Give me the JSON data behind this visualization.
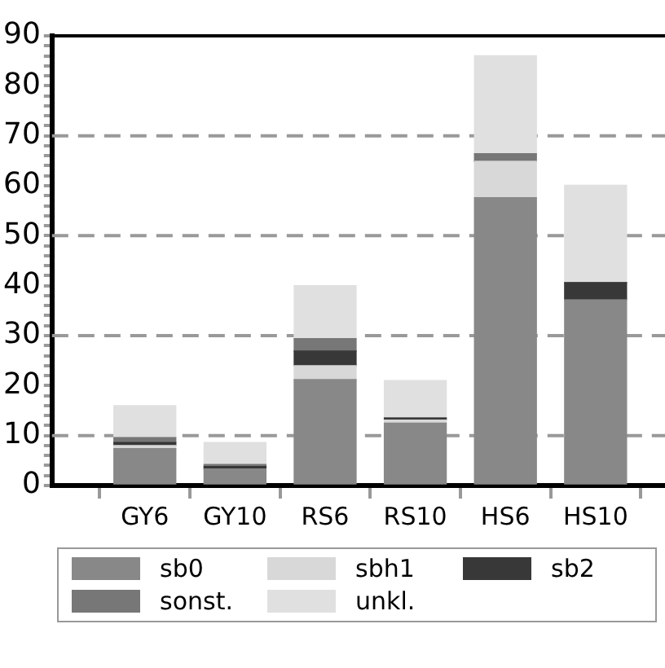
{
  "chart_data": {
    "type": "bar",
    "stacked": true,
    "categories": [
      "GY6",
      "GY10",
      "RS6",
      "RS10",
      "HS6",
      "HS10"
    ],
    "series": [
      {
        "name": "sb0",
        "color": "#888888",
        "values": [
          7.4,
          3.3,
          21.2,
          12.5,
          57.6,
          37.1
        ]
      },
      {
        "name": "sbh1",
        "color": "#d8d8d8",
        "values": [
          0.6,
          0,
          2.8,
          0.6,
          7.3,
          0
        ]
      },
      {
        "name": "sb2",
        "color": "#383838",
        "values": [
          0.6,
          0.5,
          2.9,
          0.4,
          0,
          3.5
        ]
      },
      {
        "name": "sonst.",
        "color": "#777777",
        "values": [
          1.0,
          0.4,
          2.5,
          0,
          1.5,
          0
        ]
      },
      {
        "name": "unkl.",
        "color": "#e0e0e0",
        "values": [
          6.4,
          4.4,
          10.6,
          7.5,
          19.6,
          19.5
        ]
      }
    ],
    "ylim": [
      0,
      90
    ],
    "yticks": [
      0,
      {
        "value": 2,
        "label": null
      },
      {
        "value": 4,
        "label": null
      },
      {
        "value": 6,
        "label": null
      },
      {
        "value": 8,
        "label": null
      },
      10,
      {
        "value": 12,
        "label": null
      },
      {
        "value": 14,
        "label": null
      },
      {
        "value": 16,
        "label": null
      },
      {
        "value": 18,
        "label": null
      },
      20,
      {
        "value": 22,
        "label": null
      },
      {
        "value": 24,
        "label": null
      },
      {
        "value": 26,
        "label": null
      },
      {
        "value": 28,
        "label": null
      },
      30,
      {
        "value": 32,
        "label": null
      },
      {
        "value": 34,
        "label": null
      },
      {
        "value": 36,
        "label": null
      },
      {
        "value": 38,
        "label": null
      },
      40,
      {
        "value": 42,
        "label": null
      },
      {
        "value": 44,
        "label": null
      },
      {
        "value": 46,
        "label": null
      },
      {
        "value": 48,
        "label": null
      },
      50,
      {
        "value": 52,
        "label": null
      },
      {
        "value": 54,
        "label": null
      },
      {
        "value": 56,
        "label": null
      },
      {
        "value": 58,
        "label": null
      },
      60,
      {
        "value": 62,
        "label": null
      },
      {
        "value": 64,
        "label": null
      },
      {
        "value": 66,
        "label": null
      },
      {
        "value": 68,
        "label": null
      },
      70,
      {
        "value": 72,
        "label": null
      },
      {
        "value": 74,
        "label": null
      },
      {
        "value": 76,
        "label": null
      },
      {
        "value": 78,
        "label": null
      },
      80,
      {
        "value": 82,
        "label": null
      },
      {
        "value": 84,
        "label": null
      },
      {
        "value": 86,
        "label": null
      },
      {
        "value": 88,
        "label": null
      },
      90
    ],
    "ref_lines": [
      {
        "axis": "y",
        "value": 10,
        "color": "#999999",
        "line_style": "dashed"
      },
      {
        "axis": "y",
        "value": 30,
        "color": "#999999",
        "line_style": "dashed"
      },
      {
        "axis": "y",
        "value": 50,
        "color": "#999999",
        "line_style": "dashed"
      },
      {
        "axis": "y",
        "value": 70,
        "color": "#999999",
        "line_style": "dashed"
      }
    ],
    "legend": "bottom"
  }
}
